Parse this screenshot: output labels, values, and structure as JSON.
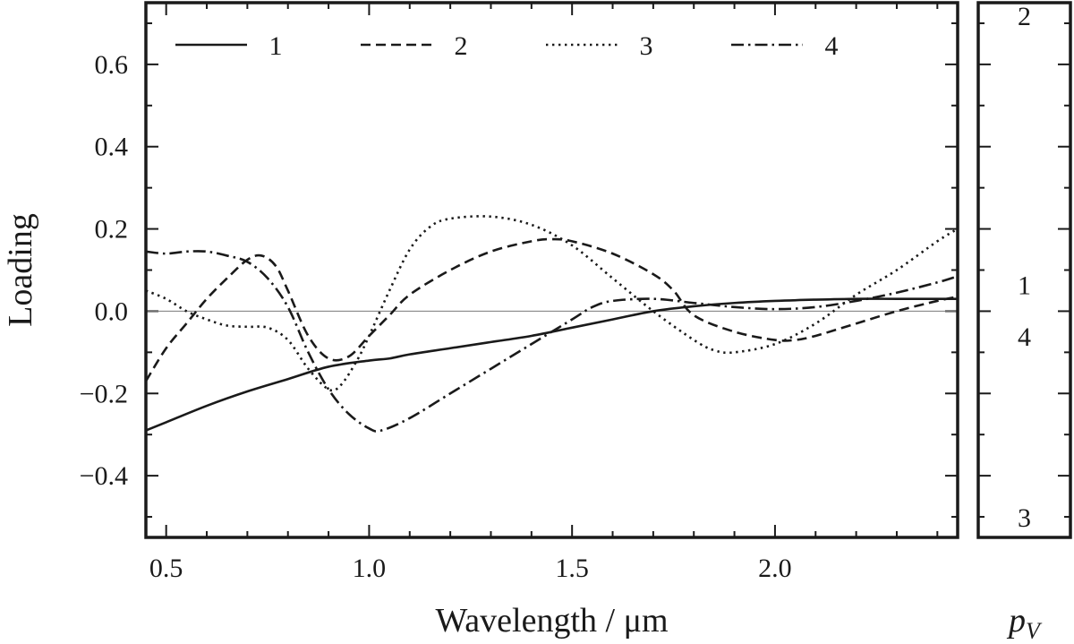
{
  "chart_data": [
    {
      "type": "line",
      "title": "",
      "xlabel": "Wavelength / μm",
      "ylabel": "Loading",
      "xlim": [
        0.45,
        2.45
      ],
      "ylim": [
        -0.55,
        0.75
      ],
      "xticks": [
        0.5,
        1.0,
        1.5,
        2.0
      ],
      "xtick_labels": [
        "0.5",
        "1.0",
        "1.5",
        "2.0"
      ],
      "yticks": [
        -0.4,
        -0.2,
        0.0,
        0.2,
        0.4,
        0.6
      ],
      "ytick_labels": [
        "−0.4",
        "−0.2",
        "0.0",
        "0.2",
        "0.4",
        "0.6"
      ],
      "grid": false,
      "zero_line": true,
      "legend": {
        "placement": "top",
        "columns": 4
      },
      "series": [
        {
          "name": "1",
          "style": "solid",
          "points": [
            [
              0.45,
              -0.29
            ],
            [
              0.5,
              -0.27
            ],
            [
              0.6,
              -0.23
            ],
            [
              0.7,
              -0.195
            ],
            [
              0.8,
              -0.165
            ],
            [
              0.9,
              -0.135
            ],
            [
              1.0,
              -0.12
            ],
            [
              1.05,
              -0.115
            ],
            [
              1.1,
              -0.105
            ],
            [
              1.2,
              -0.09
            ],
            [
              1.3,
              -0.075
            ],
            [
              1.4,
              -0.06
            ],
            [
              1.5,
              -0.04
            ],
            [
              1.6,
              -0.02
            ],
            [
              1.7,
              0.0
            ],
            [
              1.8,
              0.012
            ],
            [
              1.9,
              0.02
            ],
            [
              2.0,
              0.025
            ],
            [
              2.1,
              0.028
            ],
            [
              2.2,
              0.03
            ],
            [
              2.3,
              0.03
            ],
            [
              2.4,
              0.03
            ],
            [
              2.45,
              0.03
            ]
          ]
        },
        {
          "name": "2",
          "style": "dashed",
          "points": [
            [
              0.45,
              -0.17
            ],
            [
              0.5,
              -0.09
            ],
            [
              0.55,
              -0.03
            ],
            [
              0.6,
              0.03
            ],
            [
              0.65,
              0.08
            ],
            [
              0.7,
              0.125
            ],
            [
              0.735,
              0.135
            ],
            [
              0.77,
              0.11
            ],
            [
              0.8,
              0.05
            ],
            [
              0.85,
              -0.06
            ],
            [
              0.9,
              -0.115
            ],
            [
              0.95,
              -0.11
            ],
            [
              1.0,
              -0.06
            ],
            [
              1.05,
              -0.01
            ],
            [
              1.1,
              0.04
            ],
            [
              1.2,
              0.1
            ],
            [
              1.3,
              0.145
            ],
            [
              1.4,
              0.17
            ],
            [
              1.45,
              0.175
            ],
            [
              1.5,
              0.17
            ],
            [
              1.6,
              0.14
            ],
            [
              1.7,
              0.09
            ],
            [
              1.75,
              0.05
            ],
            [
              1.8,
              -0.01
            ],
            [
              1.9,
              -0.05
            ],
            [
              2.0,
              -0.07
            ],
            [
              2.05,
              -0.07
            ],
            [
              2.1,
              -0.06
            ],
            [
              2.2,
              -0.03
            ],
            [
              2.3,
              0.0
            ],
            [
              2.4,
              0.025
            ],
            [
              2.45,
              0.035
            ]
          ]
        },
        {
          "name": "3",
          "style": "dotted",
          "points": [
            [
              0.45,
              0.05
            ],
            [
              0.5,
              0.03
            ],
            [
              0.55,
              0.0
            ],
            [
              0.6,
              -0.02
            ],
            [
              0.65,
              -0.035
            ],
            [
              0.7,
              -0.038
            ],
            [
              0.75,
              -0.04
            ],
            [
              0.8,
              -0.07
            ],
            [
              0.85,
              -0.14
            ],
            [
              0.9,
              -0.19
            ],
            [
              0.93,
              -0.18
            ],
            [
              0.97,
              -0.12
            ],
            [
              1.0,
              -0.06
            ],
            [
              1.05,
              0.05
            ],
            [
              1.1,
              0.15
            ],
            [
              1.15,
              0.205
            ],
            [
              1.2,
              0.225
            ],
            [
              1.3,
              0.23
            ],
            [
              1.4,
              0.21
            ],
            [
              1.5,
              0.16
            ],
            [
              1.6,
              0.08
            ],
            [
              1.7,
              0.0
            ],
            [
              1.8,
              -0.07
            ],
            [
              1.85,
              -0.095
            ],
            [
              1.9,
              -0.1
            ],
            [
              2.0,
              -0.08
            ],
            [
              2.1,
              -0.03
            ],
            [
              2.2,
              0.04
            ],
            [
              2.3,
              0.1
            ],
            [
              2.4,
              0.17
            ],
            [
              2.45,
              0.2
            ]
          ]
        },
        {
          "name": "4",
          "style": "dashdot",
          "points": [
            [
              0.45,
              0.145
            ],
            [
              0.5,
              0.14
            ],
            [
              0.55,
              0.145
            ],
            [
              0.6,
              0.145
            ],
            [
              0.65,
              0.135
            ],
            [
              0.7,
              0.12
            ],
            [
              0.75,
              0.08
            ],
            [
              0.8,
              0.01
            ],
            [
              0.85,
              -0.1
            ],
            [
              0.9,
              -0.19
            ],
            [
              0.95,
              -0.25
            ],
            [
              1.0,
              -0.285
            ],
            [
              1.03,
              -0.29
            ],
            [
              1.1,
              -0.26
            ],
            [
              1.2,
              -0.2
            ],
            [
              1.3,
              -0.14
            ],
            [
              1.4,
              -0.08
            ],
            [
              1.5,
              -0.02
            ],
            [
              1.55,
              0.01
            ],
            [
              1.6,
              0.025
            ],
            [
              1.7,
              0.03
            ],
            [
              1.8,
              0.02
            ],
            [
              1.9,
              0.01
            ],
            [
              2.0,
              0.005
            ],
            [
              2.1,
              0.01
            ],
            [
              2.2,
              0.025
            ],
            [
              2.3,
              0.045
            ],
            [
              2.4,
              0.07
            ],
            [
              2.45,
              0.085
            ]
          ]
        }
      ]
    },
    {
      "type": "scatter",
      "title": "",
      "xlabel": "p",
      "xlabel_subscript": "V",
      "ylabel": "",
      "ylim": [
        -0.55,
        0.75
      ],
      "grid": false,
      "markers": [
        {
          "label": "2",
          "y": 0.72
        },
        {
          "label": "1",
          "y": 0.065
        },
        {
          "label": "4",
          "y": -0.06
        },
        {
          "label": "3",
          "y": -0.5
        }
      ]
    }
  ]
}
